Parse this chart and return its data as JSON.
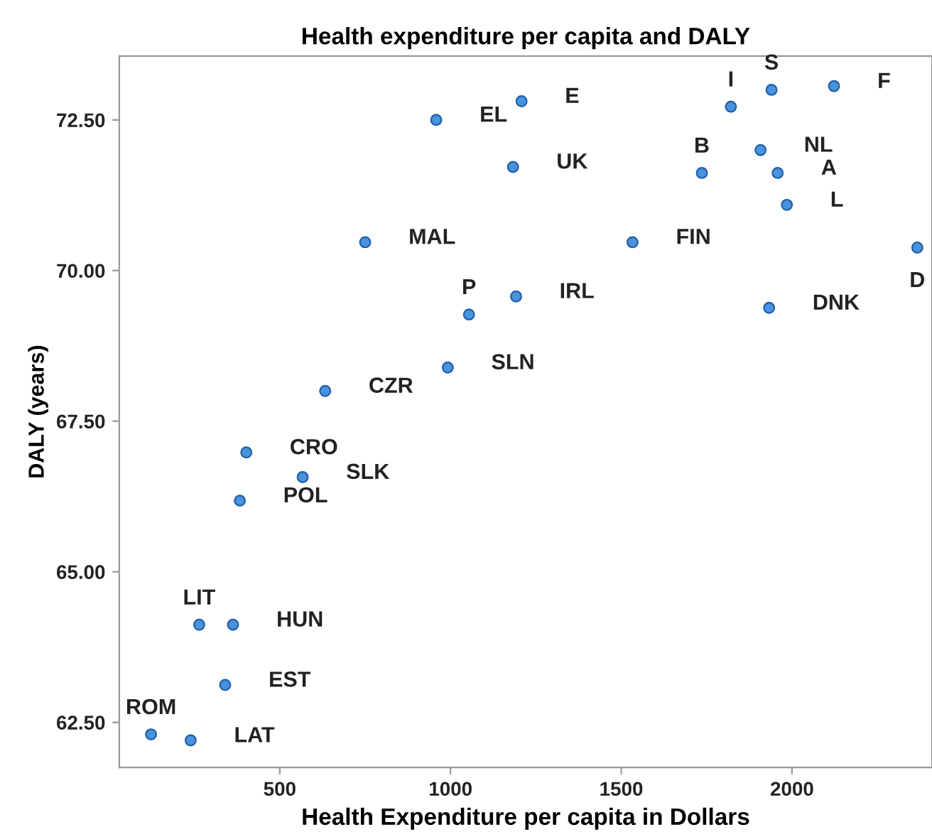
{
  "chart_data": {
    "type": "scatter",
    "title": "Health expenditure per capita and DALY",
    "xlabel": "Health Expenditure per capita in Dollars",
    "ylabel": "DALY (years)",
    "x": [
      958,
      1208,
      1183,
      750,
      1533,
      2367,
      1192,
      1054,
      1933,
      992,
      633,
      1821,
      1940,
      2123,
      1908,
      1736,
      1958,
      1985,
      402,
      567,
      383,
      264,
      363,
      340,
      123,
      239
    ],
    "series": [
      {
        "color": "#4a92dc",
        "values": [
          72.5,
          72.81,
          71.72,
          70.47,
          70.47,
          70.38,
          69.57,
          69.27,
          69.38,
          68.39,
          68.0,
          72.72,
          73.0,
          73.06,
          72.0,
          71.62,
          71.62,
          71.09,
          66.98,
          66.57,
          66.18,
          64.12,
          64.12,
          63.12,
          62.3,
          62.2
        ]
      }
    ],
    "annotations": [
      {
        "text": "EL",
        "x": 958,
        "y": 72.5
      },
      {
        "text": "E",
        "x": 1208,
        "y": 72.81
      },
      {
        "text": "UK",
        "x": 1183,
        "y": 71.72
      },
      {
        "text": "MAL",
        "x": 750,
        "y": 70.47
      },
      {
        "text": "FIN",
        "x": 1533,
        "y": 70.47
      },
      {
        "text": "D",
        "x": 2367,
        "y": 70.38
      },
      {
        "text": "IRL",
        "x": 1192,
        "y": 69.57
      },
      {
        "text": "P",
        "x": 1054,
        "y": 69.27
      },
      {
        "text": "DNK",
        "x": 1933,
        "y": 69.38
      },
      {
        "text": "SLN",
        "x": 992,
        "y": 68.39
      },
      {
        "text": "CZR",
        "x": 633,
        "y": 68.0
      },
      {
        "text": "I",
        "x": 1821,
        "y": 72.72
      },
      {
        "text": "S",
        "x": 1940,
        "y": 73.0
      },
      {
        "text": "F",
        "x": 2123,
        "y": 73.06
      },
      {
        "text": "NL",
        "x": 1908,
        "y": 72.0
      },
      {
        "text": "B",
        "x": 1736,
        "y": 71.62
      },
      {
        "text": "A",
        "x": 1958,
        "y": 71.62
      },
      {
        "text": "L",
        "x": 1985,
        "y": 71.09
      },
      {
        "text": "CRO",
        "x": 402,
        "y": 66.98
      },
      {
        "text": "SLK",
        "x": 567,
        "y": 66.57
      },
      {
        "text": "POL",
        "x": 383,
        "y": 66.18
      },
      {
        "text": "LIT",
        "x": 264,
        "y": 64.12
      },
      {
        "text": "HUN",
        "x": 363,
        "y": 64.12
      },
      {
        "text": "EST",
        "x": 340,
        "y": 63.12
      },
      {
        "text": "ROM",
        "x": 123,
        "y": 62.3
      },
      {
        "text": "LAT",
        "x": 239,
        "y": 62.2
      }
    ],
    "xlim": [
      30,
      2410
    ],
    "ylim": [
      61.75,
      73.56
    ],
    "xticks": [
      500,
      1000,
      1500,
      2000
    ],
    "yticks": [
      {
        "value": 62.5,
        "label": "62.50"
      },
      {
        "value": 65,
        "label": "65.00"
      },
      {
        "value": 67.5,
        "label": "67.50"
      },
      {
        "value": 70,
        "label": "70.00"
      },
      {
        "value": 72.5,
        "label": "72.50"
      }
    ],
    "marker": "circle",
    "grid": false
  }
}
